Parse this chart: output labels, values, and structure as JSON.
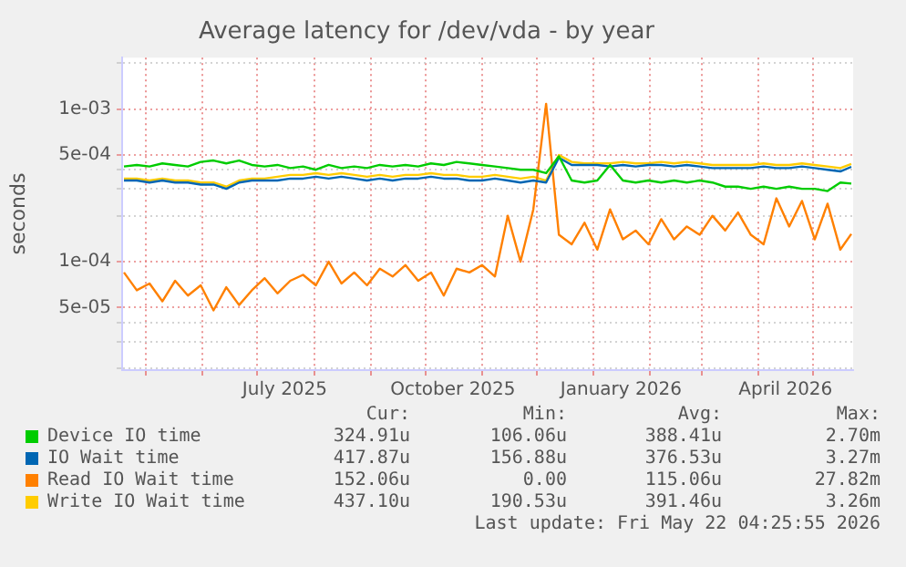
{
  "chart_data": {
    "type": "line",
    "title": "Average latency for /dev/vda - by year",
    "ylabel": "seconds",
    "log": "y",
    "x": [
      "2025-04-19",
      "2025-04-26",
      "2025-05-03",
      "2025-05-10",
      "2025-05-17",
      "2025-05-24",
      "2025-05-31",
      "2025-06-07",
      "2025-06-14",
      "2025-06-21",
      "2025-06-28",
      "2025-07-05",
      "2025-07-12",
      "2025-07-19",
      "2025-07-26",
      "2025-08-02",
      "2025-08-09",
      "2025-08-16",
      "2025-08-23",
      "2025-08-30",
      "2025-09-06",
      "2025-09-13",
      "2025-09-20",
      "2025-09-27",
      "2025-10-04",
      "2025-10-11",
      "2025-10-18",
      "2025-10-25",
      "2025-11-01",
      "2025-11-08",
      "2025-11-15",
      "2025-11-22",
      "2025-11-29",
      "2025-12-06",
      "2025-12-13",
      "2025-12-20",
      "2025-12-27",
      "2026-01-03",
      "2026-01-10",
      "2026-01-17",
      "2026-01-24",
      "2026-01-31",
      "2026-02-07",
      "2026-02-14",
      "2026-02-21",
      "2026-02-28",
      "2026-03-07",
      "2026-03-14",
      "2026-03-21",
      "2026-03-28",
      "2026-04-04",
      "2026-04-11",
      "2026-04-18",
      "2026-04-25",
      "2026-05-02",
      "2026-05-09",
      "2026-05-16",
      "2026-05-22"
    ],
    "series": [
      {
        "name": "Device IO time",
        "color": "#00cc00",
        "values": [
          0.00042,
          0.00043,
          0.00042,
          0.00044,
          0.00043,
          0.00042,
          0.00045,
          0.00046,
          0.00044,
          0.00046,
          0.00043,
          0.00042,
          0.00043,
          0.00041,
          0.00042,
          0.0004,
          0.00043,
          0.00041,
          0.00042,
          0.00041,
          0.00043,
          0.00042,
          0.00043,
          0.00042,
          0.00044,
          0.00043,
          0.00045,
          0.00044,
          0.00043,
          0.00042,
          0.00041,
          0.0004,
          0.0004,
          0.00038,
          0.00049,
          0.00034,
          0.00033,
          0.00034,
          0.00043,
          0.00034,
          0.00033,
          0.00034,
          0.00033,
          0.00034,
          0.00033,
          0.00034,
          0.00033,
          0.00031,
          0.00031,
          0.0003,
          0.00031,
          0.0003,
          0.00031,
          0.0003,
          0.0003,
          0.00029,
          0.00033,
          0.000325
        ]
      },
      {
        "name": "IO Wait time",
        "color": "#0066b3",
        "values": [
          0.00034,
          0.00034,
          0.00033,
          0.00034,
          0.00033,
          0.00033,
          0.00032,
          0.00032,
          0.0003,
          0.00033,
          0.00034,
          0.00034,
          0.00034,
          0.00035,
          0.00035,
          0.00036,
          0.00035,
          0.00036,
          0.00035,
          0.00034,
          0.00035,
          0.00034,
          0.00035,
          0.00035,
          0.00036,
          0.00035,
          0.00035,
          0.00034,
          0.00034,
          0.00035,
          0.00034,
          0.00033,
          0.00034,
          0.00033,
          0.00048,
          0.00043,
          0.00043,
          0.00043,
          0.00042,
          0.00043,
          0.00042,
          0.00043,
          0.00043,
          0.00042,
          0.00043,
          0.00042,
          0.00041,
          0.00041,
          0.00041,
          0.00041,
          0.00042,
          0.00041,
          0.00041,
          0.00042,
          0.00041,
          0.0004,
          0.00039,
          0.000418
        ]
      },
      {
        "name": "Read IO Wait time",
        "color": "#ff8000",
        "values": [
          8.5e-05,
          6.5e-05,
          7.2e-05,
          5.5e-05,
          7.5e-05,
          6e-05,
          7e-05,
          4.8e-05,
          6.8e-05,
          5.2e-05,
          6.5e-05,
          7.8e-05,
          6.2e-05,
          7.5e-05,
          8.2e-05,
          7e-05,
          0.0001,
          7.2e-05,
          8.5e-05,
          7e-05,
          9e-05,
          8e-05,
          9.5e-05,
          7.5e-05,
          8.5e-05,
          6e-05,
          9e-05,
          8.5e-05,
          9.5e-05,
          8e-05,
          0.0002,
          0.0001,
          0.00022,
          0.00108,
          0.00015,
          0.00013,
          0.00018,
          0.00012,
          0.00022,
          0.00014,
          0.00016,
          0.00013,
          0.00019,
          0.00014,
          0.00017,
          0.00015,
          0.0002,
          0.00016,
          0.00021,
          0.00015,
          0.00013,
          0.00026,
          0.00017,
          0.00025,
          0.00014,
          0.00024,
          0.00012,
          0.000152
        ]
      },
      {
        "name": "Write IO Wait time",
        "color": "#ffcc00",
        "values": [
          0.00035,
          0.00035,
          0.00034,
          0.00035,
          0.00034,
          0.00034,
          0.00033,
          0.00033,
          0.00031,
          0.00034,
          0.00035,
          0.00035,
          0.00036,
          0.00037,
          0.00037,
          0.00038,
          0.00037,
          0.00038,
          0.00037,
          0.00036,
          0.00037,
          0.00036,
          0.00037,
          0.00037,
          0.00038,
          0.00037,
          0.00037,
          0.00036,
          0.00036,
          0.00037,
          0.00036,
          0.00035,
          0.00036,
          0.00034,
          0.0005,
          0.00045,
          0.00044,
          0.00044,
          0.00044,
          0.00045,
          0.00044,
          0.00044,
          0.00045,
          0.00044,
          0.00045,
          0.00044,
          0.00043,
          0.00043,
          0.00043,
          0.00043,
          0.00044,
          0.00043,
          0.00043,
          0.00044,
          0.00043,
          0.00042,
          0.00041,
          0.000437
        ]
      }
    ],
    "xlim": [
      "2025-04-18",
      "2026-05-23"
    ],
    "xticks": [
      {
        "value": "2025-05-01",
        "label": null
      },
      {
        "value": "2025-06-01",
        "label": null
      },
      {
        "value": "2025-07-01",
        "label": null
      },
      {
        "value": "2025-07-16",
        "label": "July 2025"
      },
      {
        "value": "2025-08-01",
        "label": null
      },
      {
        "value": "2025-09-01",
        "label": null
      },
      {
        "value": "2025-10-01",
        "label": null
      },
      {
        "value": "2025-10-16",
        "label": "October 2025"
      },
      {
        "value": "2025-11-01",
        "label": null
      },
      {
        "value": "2025-12-01",
        "label": null
      },
      {
        "value": "2026-01-01",
        "label": null
      },
      {
        "value": "2026-01-16",
        "label": "January 2026"
      },
      {
        "value": "2026-02-01",
        "label": null
      },
      {
        "value": "2026-03-01",
        "label": null
      },
      {
        "value": "2026-04-01",
        "label": null
      },
      {
        "value": "2026-04-16",
        "label": "April 2026"
      },
      {
        "value": "2026-05-01",
        "label": null
      }
    ],
    "ylim": [
      1.95e-05,
      0.00217
    ],
    "yticks": [
      {
        "value": 2e-05,
        "label": null
      },
      {
        "value": 3e-05,
        "label": null
      },
      {
        "value": 4e-05,
        "label": null
      },
      {
        "value": 5e-05,
        "label": "5e-05"
      },
      {
        "value": 0.0001,
        "label": "1e-04"
      },
      {
        "value": 0.0002,
        "label": null
      },
      {
        "value": 0.0003,
        "label": null
      },
      {
        "value": 0.0004,
        "label": null
      },
      {
        "value": 0.0005,
        "label": "5e-04"
      },
      {
        "value": 0.001,
        "label": "1e-03"
      },
      {
        "value": 0.002,
        "label": null
      }
    ],
    "grid": true,
    "legend": "bottom",
    "annotations": [
      "Cur:",
      "Min:",
      "Avg:",
      "Max:",
      "324.91u",
      "106.06u",
      "388.41u",
      "2.70m",
      "417.87u",
      "156.88u",
      "376.53u",
      "3.27m",
      "152.06u",
      "0.00",
      "115.06u",
      "27.82m",
      "437.10u",
      "190.53u",
      "391.46u",
      "3.26m",
      "Last update: Fri May 22 04:25:55 2026"
    ]
  }
}
